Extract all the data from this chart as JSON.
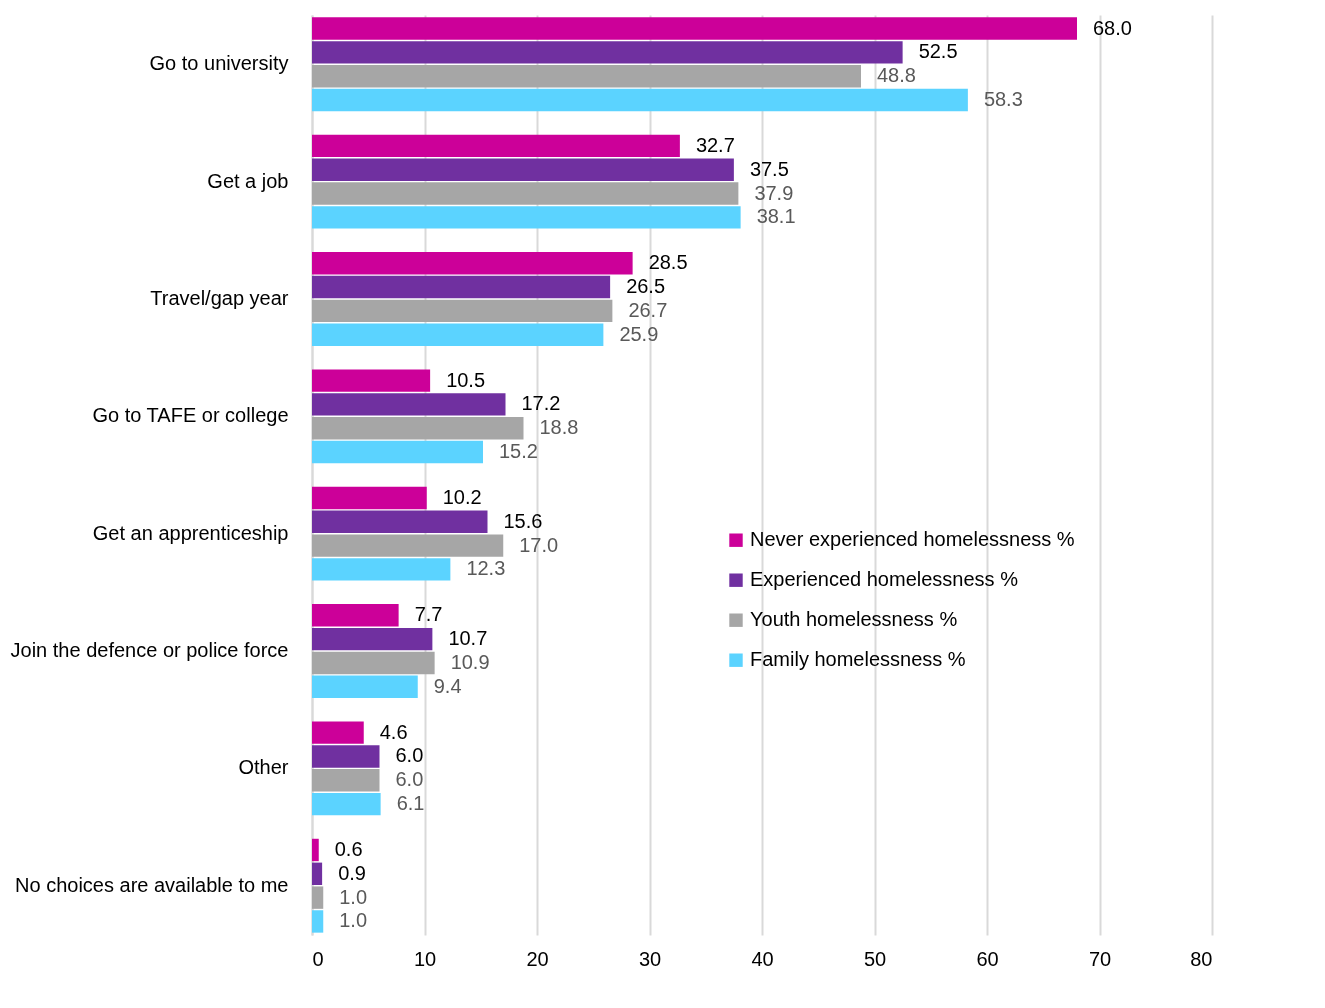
{
  "chart_data": {
    "type": "bar",
    "orientation": "horizontal",
    "categories": [
      "Go to university",
      "Get a job",
      "Travel/gap year",
      "Go to TAFE or college",
      "Get an apprenticeship",
      "Join the defence or police force",
      "Other",
      "No choices are available to me"
    ],
    "series": [
      {
        "name": "Never experienced homelessness %",
        "color": "#cc0099",
        "values": [
          68,
          32.7,
          28.5,
          10.5,
          10.2,
          7.7,
          4.6,
          0.6
        ],
        "value_labels": [
          "68.0",
          "32.7",
          "28.5",
          "10.5",
          "10.2",
          "7.7",
          "4.6",
          "0.6"
        ]
      },
      {
        "name": "Experienced homelessness %",
        "color": "#7030a0",
        "values": [
          52.5,
          37.5,
          26.5,
          17.2,
          15.6,
          10.7,
          6,
          0.9
        ],
        "value_labels": [
          "52.5",
          "37.5",
          "26.5",
          "17.2",
          "15.6",
          "10.7",
          "6.0",
          "0.9"
        ]
      },
      {
        "name": "Youth homelessness %",
        "color": "#a6a6a6",
        "values": [
          48.8,
          37.9,
          26.7,
          18.8,
          17,
          10.9,
          6,
          1
        ],
        "value_labels": [
          "48.8",
          "37.9",
          "26.7",
          "18.8",
          "17.0",
          "10.9",
          "6.0",
          "1.0"
        ]
      },
      {
        "name": "Family homelessness %",
        "color": "#5bd3ff",
        "values": [
          58.3,
          38.1,
          25.9,
          15.2,
          12.3,
          9.4,
          6.1,
          1
        ],
        "value_labels": [
          "58.3",
          "38.1",
          "25.9",
          "15.2",
          "12.3",
          "9.4",
          "6.1",
          "1.0"
        ]
      }
    ],
    "xlim": [
      0,
      80
    ],
    "xticks": [
      0,
      10,
      20,
      30,
      40,
      50,
      60,
      70,
      80
    ],
    "grid": "x",
    "legend": "right"
  }
}
